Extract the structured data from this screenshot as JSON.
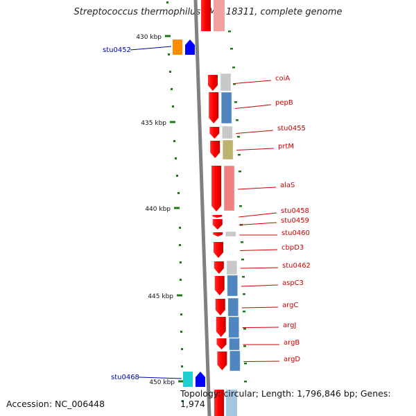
{
  "title": "Streptococcus thermophilus LMG 18311, complete genome",
  "footer": {
    "accession": "Accession: NC_006448",
    "topology": "Topology: circular; Length: 1,796,846 bp; Genes: 1,974"
  },
  "ruler": {
    "labels": [
      "430 kbp",
      "435 kbp",
      "440 kbp",
      "445 kbp",
      "450 kbp"
    ],
    "tick_color": "#1a7a1a"
  },
  "colors": {
    "strand": "#ff0000",
    "red_label": "#cc0000",
    "blue_label": "#0000aa",
    "backbone": "#808080"
  },
  "genes_right": [
    {
      "name": "coiA",
      "hit": "#c8c8c8"
    },
    {
      "name": "pepB",
      "hit": "#4f86c0"
    },
    {
      "name": "stu0455",
      "hit": "#c8c8c8"
    },
    {
      "name": "prtM",
      "hit": "#bcb46e"
    },
    {
      "name": "alaS",
      "hit": "#ef8080"
    },
    {
      "name": "stu0458",
      "hit": ""
    },
    {
      "name": "stu0459",
      "hit": ""
    },
    {
      "name": "stu0460",
      "hit": "#c8c8c8"
    },
    {
      "name": "cbpD3",
      "hit": ""
    },
    {
      "name": "stu0462",
      "hit": "#c8c8c8"
    },
    {
      "name": "aspC3",
      "hit": "#4f86c0"
    },
    {
      "name": "argC",
      "hit": "#4f86c0"
    },
    {
      "name": "argJ",
      "hit": "#4f86c0"
    },
    {
      "name": "argB",
      "hit": "#4f86c0"
    },
    {
      "name": "argD",
      "hit": "#4f86c0"
    }
  ],
  "genes_left": [
    {
      "name": "stu0452",
      "colors": [
        "#ff8c00",
        "#0000ff"
      ]
    },
    {
      "name": "stu0468",
      "colors": [
        "#20d0d0",
        "#0000ff"
      ]
    }
  ]
}
